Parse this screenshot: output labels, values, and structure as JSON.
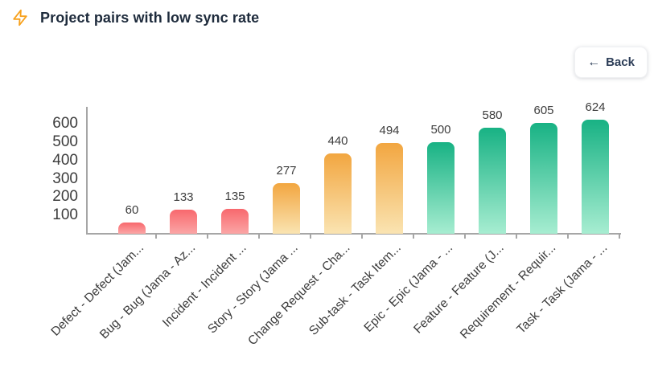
{
  "header": {
    "title": "Project pairs with low sync rate"
  },
  "toolbar": {
    "back_label": "Back",
    "back_arrow": "←"
  },
  "colors": {
    "title_text": "#1e2b3c",
    "back_text": "#2d3e58",
    "lightning_accent": "#f7a11d",
    "axis": "#a6a6a6",
    "tick_label_text": "#3d3d3d",
    "value_label_text": "#3d3d3d",
    "palette": {
      "red": {
        "top": "#f8686d",
        "bottom": "#fba6a6"
      },
      "amber": {
        "top": "#f2a640",
        "bottom": "#fae4b2"
      },
      "green": {
        "top": "#18b284",
        "bottom": "#a7edd1"
      }
    }
  },
  "chart_data": {
    "type": "bar",
    "title": "Project pairs with low sync rate",
    "xlabel": "",
    "ylabel": "",
    "categories": [
      "Defect - Defect (Jam...",
      "Bug - Bug (Jama - Az...",
      "Incident - Incident ...",
      "Story - Story (Jama ...",
      "Change Request - Cha...",
      "Sub-task - Task Item...",
      "Epic - Epic (Jama - ...",
      "Feature - Feature (J...",
      "Requirement - Requir...",
      "Task - Task (Jama - ..."
    ],
    "values": [
      60,
      133,
      135,
      277,
      440,
      494,
      500,
      580,
      605,
      624
    ],
    "bar_colors": [
      "red",
      "red",
      "red",
      "amber",
      "amber",
      "amber",
      "green",
      "green",
      "green",
      "green"
    ],
    "y_ticks": [
      100,
      200,
      300,
      400,
      500,
      600
    ],
    "ylim": [
      0,
      700
    ],
    "grid": false,
    "legend": false,
    "value_labels_shown": true,
    "x_label_rotation_deg": -45
  }
}
